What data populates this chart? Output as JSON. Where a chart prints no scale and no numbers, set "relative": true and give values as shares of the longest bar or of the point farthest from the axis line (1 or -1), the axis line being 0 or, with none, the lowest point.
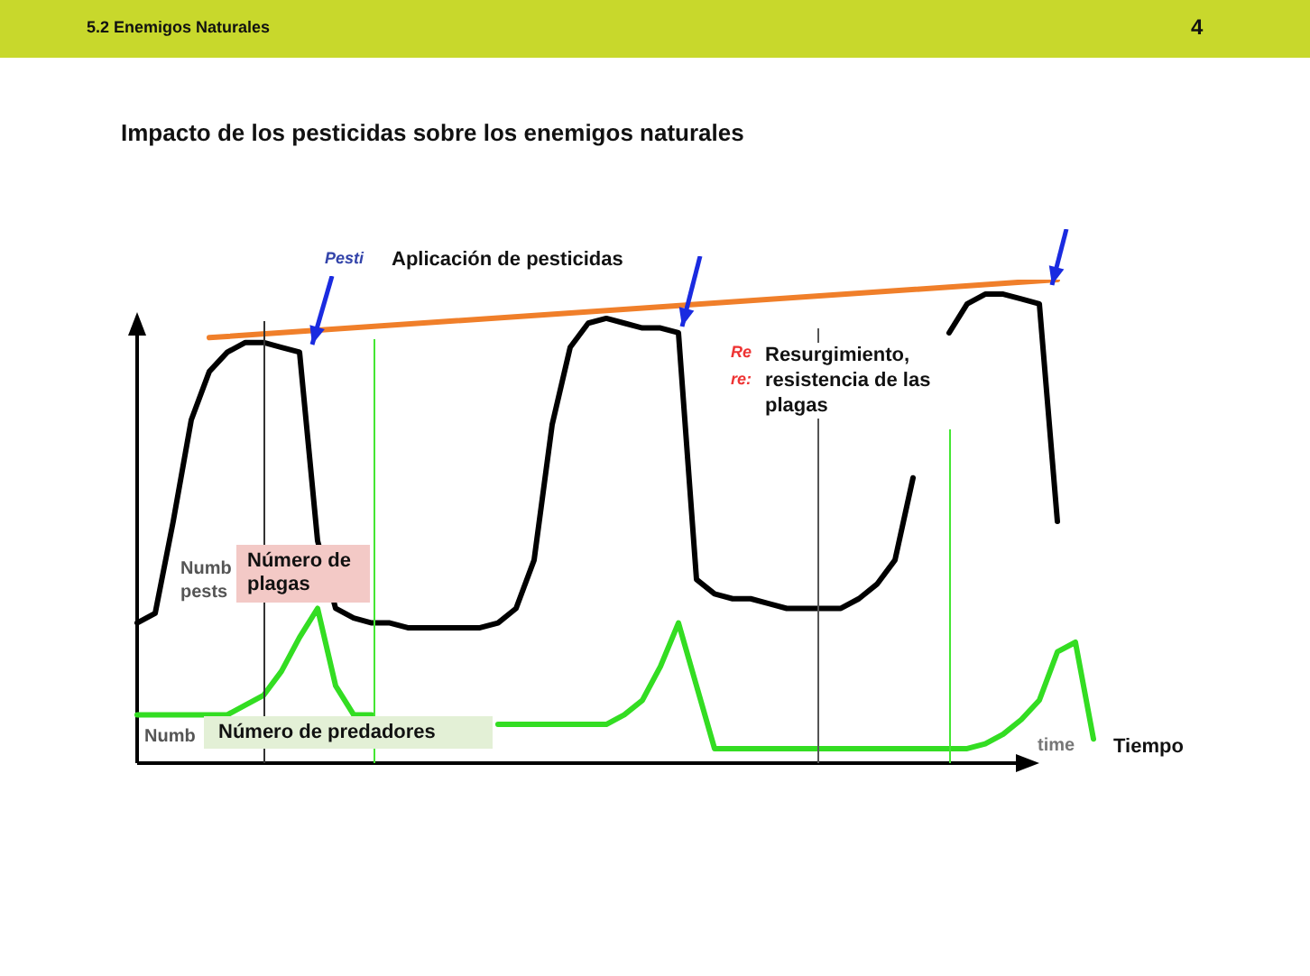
{
  "chart_data": {
    "type": "line",
    "relative": true,
    "marker": "none",
    "title": "Impacto de los pesticidas sobre los enemigos naturales",
    "categories": [
      null,
      null,
      null,
      null,
      null,
      null,
      null,
      null,
      null,
      null,
      null,
      null,
      null,
      null,
      null,
      null,
      null,
      null,
      null,
      null,
      null,
      null,
      null,
      null,
      null,
      null,
      null,
      null,
      null,
      null,
      null,
      null,
      null,
      null,
      null,
      null,
      null,
      null,
      null,
      null,
      null,
      null,
      null,
      null,
      null,
      null,
      null,
      null,
      null,
      null,
      null,
      null,
      null,
      null
    ],
    "series": [
      {
        "name": "Número de plagas",
        "color": "#000000",
        "values": [
          0.29,
          0.31,
          0.5,
          0.71,
          0.81,
          0.85,
          0.87,
          0.87,
          0.86,
          0.85,
          0.46,
          0.32,
          0.3,
          0.29,
          0.29,
          0.28,
          0.28,
          0.28,
          0.28,
          0.28,
          0.29,
          0.32,
          0.42,
          0.7,
          0.86,
          0.91,
          0.92,
          0.91,
          0.9,
          0.9,
          0.89,
          0.38,
          0.35,
          0.34,
          0.34,
          0.33,
          0.32,
          0.32,
          0.32,
          0.32,
          0.34,
          0.37,
          0.42,
          0.59,
          null,
          0.89,
          0.95,
          0.97,
          0.97,
          0.96,
          0.95,
          0.5,
          null,
          null
        ]
      },
      {
        "name": "Número de predadores",
        "color": "#33dd22",
        "values": [
          0.1,
          0.1,
          0.1,
          0.1,
          0.1,
          0.1,
          0.12,
          0.14,
          0.19,
          0.26,
          0.32,
          0.16,
          0.1,
          0.1,
          null,
          null,
          null,
          null,
          null,
          null,
          0.08,
          0.08,
          0.08,
          0.08,
          0.08,
          0.08,
          0.08,
          0.1,
          0.13,
          0.2,
          0.29,
          0.16,
          0.03,
          0.03,
          0.03,
          0.03,
          0.03,
          0.03,
          0.03,
          0.03,
          0.03,
          0.03,
          0.03,
          0.03,
          0.03,
          0.03,
          0.03,
          0.04,
          0.06,
          0.09,
          0.13,
          0.23,
          0.25,
          0.05
        ]
      },
      {
        "color": "#f07f2a",
        "values": [
          null,
          null,
          null,
          null,
          0.88,
          null,
          null,
          null,
          null,
          null,
          null,
          null,
          null,
          null,
          null,
          null,
          null,
          null,
          null,
          null,
          null,
          null,
          null,
          null,
          null,
          null,
          null,
          null,
          null,
          null,
          null,
          null,
          null,
          null,
          null,
          null,
          null,
          null,
          null,
          null,
          null,
          null,
          null,
          null,
          null,
          null,
          null,
          null,
          null,
          null,
          null,
          1.0,
          null,
          null
        ]
      }
    ],
    "annotations": [
      "5.2 Enemigos Naturales",
      "4",
      "Pesti",
      "Aplicación de pesticidas",
      "Re",
      "re:",
      "Resurgimiento, resistencia de las plagas",
      "Numb",
      "pests",
      "Numb",
      "time",
      "Tiempo"
    ]
  }
}
